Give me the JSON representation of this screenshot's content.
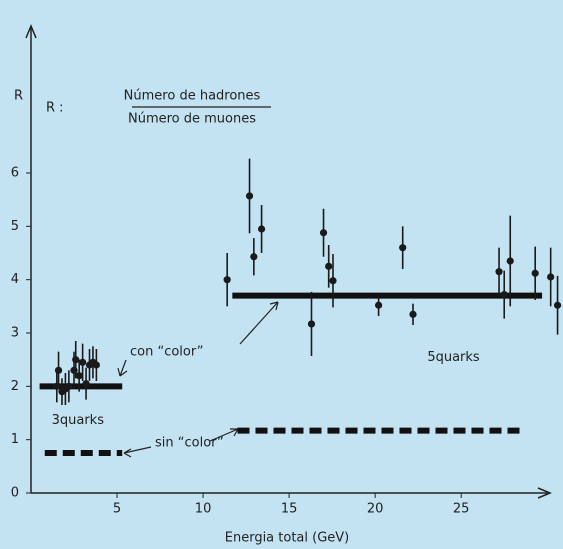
{
  "chart_data": {
    "type": "scatter",
    "y_label": "R",
    "x_label": "Energia total (GeV)",
    "formula": {
      "lhs": "R :",
      "numerator": "Número de hadrones",
      "denominator": "Número de muones"
    },
    "annotations": [
      "con “color”",
      "sin “color”"
    ],
    "xlim": [
      0,
      30.8
    ],
    "ylim": [
      0,
      8.7
    ],
    "xticks": [
      5,
      10,
      15,
      20,
      25
    ],
    "yticks": [
      0,
      1,
      2,
      3,
      4,
      5,
      6
    ],
    "series": [
      {
        "color": "#1a1a1a",
        "x": [
          1.5,
          1.6,
          1.8,
          2.0,
          2.2,
          2.5,
          2.6,
          2.8,
          3.0,
          3.2,
          3.4,
          3.6,
          3.8,
          11.4,
          12.7,
          12.95,
          13.4,
          16.3,
          17.0,
          17.3,
          17.55,
          20.2,
          21.6,
          22.2,
          27.2,
          27.5,
          27.85,
          29.3,
          30.2,
          30.6
        ],
        "values": [
          2.0,
          2.3,
          1.9,
          1.95,
          2.0,
          2.3,
          2.5,
          2.2,
          2.45,
          2.05,
          2.4,
          2.45,
          2.4,
          4.0,
          5.57,
          4.43,
          4.95,
          3.17,
          4.88,
          4.25,
          3.98,
          3.52,
          4.6,
          3.35,
          4.15,
          3.72,
          4.35,
          4.12,
          4.05,
          3.52
        ],
        "errors": [
          0.3,
          0.35,
          0.25,
          0.3,
          0.3,
          0.35,
          0.35,
          0.3,
          0.35,
          0.3,
          0.3,
          0.3,
          0.3,
          0.5,
          0.7,
          0.35,
          0.45,
          0.6,
          0.45,
          0.4,
          0.5,
          0.2,
          0.4,
          0.2,
          0.45,
          0.45,
          0.85,
          0.5,
          0.55,
          0.55
        ]
      }
    ],
    "lines": [
      {
        "y": 2,
        "x": [
          0.5,
          5.3
        ],
        "style": "solid",
        "label": "3quarks"
      },
      {
        "y": 3.7,
        "x": [
          11.7,
          29.7
        ],
        "style": "solid",
        "label": "5quarks"
      },
      {
        "y": 0.75,
        "x": [
          0.8,
          5.3
        ],
        "style": "dashed"
      },
      {
        "y": 1.17,
        "x": [
          12.0,
          28.4
        ],
        "style": "dashed"
      }
    ]
  }
}
